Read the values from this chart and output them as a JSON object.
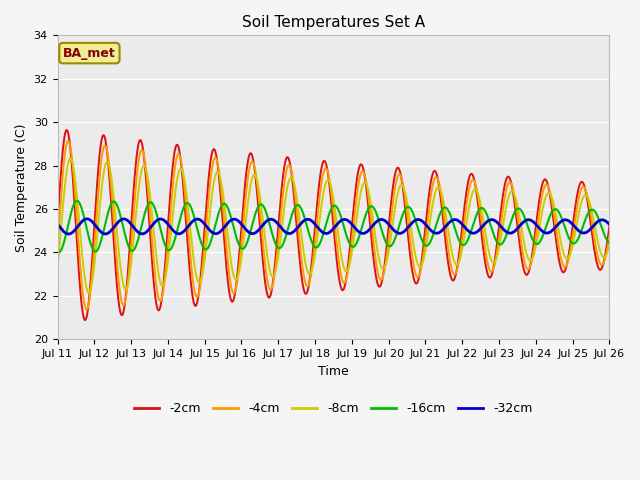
{
  "title": "Soil Temperatures Set A",
  "xlabel": "Time",
  "ylabel": "Soil Temperature (C)",
  "ylim": [
    20,
    34
  ],
  "tick_labels": [
    "Jul 11",
    "Jul 12",
    "Jul 13",
    "Jul 14",
    "Jul 15",
    "Jul 16",
    "Jul 17",
    "Jul 18",
    "Jul 19",
    "Jul 20",
    "Jul 21",
    "Jul 22",
    "Jul 23",
    "Jul 24",
    "Jul 25",
    "Jul 26"
  ],
  "series_labels": [
    "-2cm",
    "-4cm",
    "-8cm",
    "-16cm",
    "-32cm"
  ],
  "series_colors": [
    "#dd1111",
    "#ff9900",
    "#cccc00",
    "#00bb00",
    "#0000cc"
  ],
  "annotation_text": "BA_met",
  "annotation_bg": "#eeee99",
  "annotation_border": "#998800",
  "annotation_text_color": "#880000",
  "fig_facecolor": "#f5f5f5",
  "plot_facecolor": "#ebebeb",
  "title_fontsize": 11,
  "label_fontsize": 9,
  "tick_fontsize": 8,
  "legend_fontsize": 9,
  "linewidths": [
    1.4,
    1.4,
    1.4,
    1.5,
    2.0
  ],
  "n_points": 3000,
  "mean_temp": 25.2,
  "period_days": 1.0,
  "amplitudes": [
    4.5,
    4.0,
    3.2,
    1.2,
    0.35
  ],
  "phase_shifts_days": [
    0.0,
    0.04,
    0.1,
    0.28,
    0.55
  ],
  "decay_rates": [
    0.055,
    0.055,
    0.055,
    0.03,
    0.01
  ],
  "mean_drift_per_day": [
    -0.0,
    -0.0,
    0.0,
    0.0,
    0.0
  ]
}
